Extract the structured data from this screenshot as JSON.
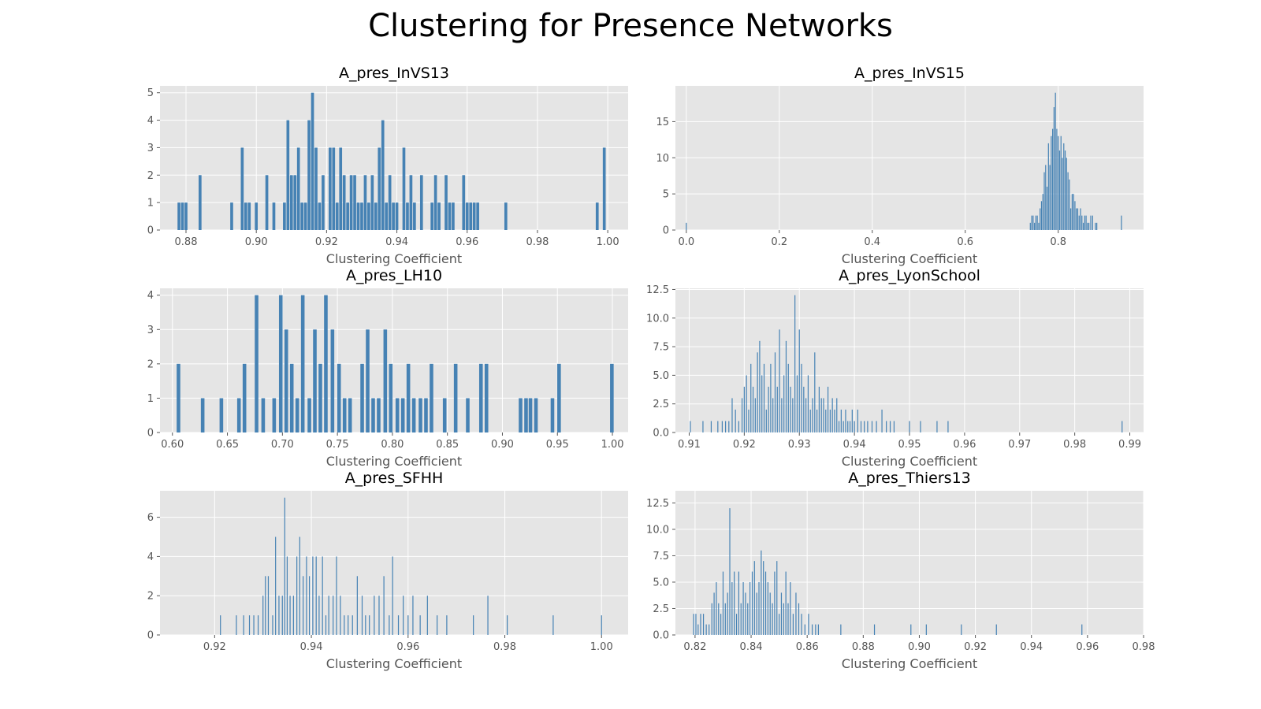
{
  "figure": {
    "suptitle": "Clustering for Presence Networks"
  },
  "colors": {
    "bar": "#4682b4",
    "panel_bg": "#e5e5e5",
    "grid": "#ffffff",
    "tick": "#555555"
  },
  "chart_data": [
    {
      "type": "bar",
      "title": "A_pres_InVS13",
      "xlabel": "Clustering Coefficient",
      "ylabel": "",
      "xlim": [
        0.8726,
        1.0058
      ],
      "ylim": [
        0,
        5.25
      ],
      "xticks": [
        0.88,
        0.9,
        0.92,
        0.94,
        0.96,
        0.98,
        1.0
      ],
      "xtick_labels": [
        "0.88",
        "0.90",
        "0.92",
        "0.94",
        "0.96",
        "0.98",
        "1.00"
      ],
      "yticks": [
        0,
        1,
        2,
        3,
        4,
        5
      ],
      "ytick_labels": [
        "0",
        "1",
        "2",
        "3",
        "4",
        "5"
      ],
      "bin_width": 0.001,
      "x": [
        0.878,
        0.879,
        0.88,
        0.884,
        0.893,
        0.896,
        0.897,
        0.898,
        0.9,
        0.903,
        0.905,
        0.908,
        0.909,
        0.91,
        0.911,
        0.912,
        0.913,
        0.914,
        0.915,
        0.916,
        0.917,
        0.918,
        0.919,
        0.921,
        0.922,
        0.923,
        0.924,
        0.925,
        0.926,
        0.927,
        0.928,
        0.929,
        0.93,
        0.931,
        0.932,
        0.933,
        0.934,
        0.935,
        0.936,
        0.937,
        0.938,
        0.939,
        0.94,
        0.942,
        0.943,
        0.944,
        0.945,
        0.947,
        0.95,
        0.951,
        0.952,
        0.954,
        0.955,
        0.956,
        0.959,
        0.96,
        0.961,
        0.962,
        0.963,
        0.971,
        0.997,
        0.999
      ],
      "values": [
        1,
        1,
        1,
        2,
        1,
        3,
        1,
        1,
        1,
        2,
        1,
        1,
        4,
        2,
        2,
        3,
        1,
        1,
        4,
        5,
        3,
        1,
        2,
        3,
        3,
        1,
        3,
        2,
        1,
        2,
        2,
        1,
        1,
        2,
        1,
        2,
        1,
        3,
        4,
        1,
        2,
        1,
        1,
        3,
        1,
        2,
        1,
        2,
        1,
        2,
        1,
        2,
        1,
        1,
        2,
        1,
        1,
        1,
        1,
        1,
        1,
        3
      ]
    },
    {
      "type": "bar",
      "title": "A_pres_InVS15",
      "xlabel": "Clustering Coefficient",
      "ylabel": "",
      "xlim": [
        -0.0234,
        0.9836
      ],
      "ylim": [
        0,
        19.95
      ],
      "xticks": [
        0.0,
        0.2,
        0.4,
        0.6,
        0.8
      ],
      "xtick_labels": [
        "0.0",
        "0.2",
        "0.4",
        "0.6",
        "0.8"
      ],
      "yticks": [
        0,
        5,
        10,
        15
      ],
      "ytick_labels": [
        "0",
        "5",
        "10",
        "15"
      ],
      "bin_width": 0.0025,
      "x": [
        0.0,
        0.74,
        0.743,
        0.746,
        0.749,
        0.752,
        0.755,
        0.758,
        0.761,
        0.764,
        0.767,
        0.77,
        0.773,
        0.776,
        0.779,
        0.782,
        0.785,
        0.788,
        0.791,
        0.794,
        0.797,
        0.8,
        0.803,
        0.806,
        0.809,
        0.812,
        0.815,
        0.818,
        0.821,
        0.824,
        0.827,
        0.83,
        0.833,
        0.836,
        0.839,
        0.842,
        0.845,
        0.848,
        0.851,
        0.854,
        0.857,
        0.86,
        0.863,
        0.866,
        0.87,
        0.874,
        0.88,
        0.883,
        0.936
      ],
      "values": [
        1,
        1,
        2,
        2,
        1,
        2,
        2,
        1,
        3,
        4,
        5,
        8,
        9,
        6,
        12,
        9,
        13,
        14,
        17,
        19,
        14,
        13,
        11,
        13,
        10,
        12,
        11,
        10,
        8,
        7,
        3,
        5,
        5,
        4,
        3,
        3,
        2,
        3,
        2,
        1,
        2,
        2,
        1,
        1,
        2,
        2,
        1,
        1,
        2
      ]
    },
    {
      "type": "bar",
      "title": "A_pres_LH10",
      "xlabel": "Clustering Coefficient",
      "ylabel": "",
      "xlim": [
        0.5887,
        1.0143
      ],
      "ylim": [
        0,
        4.2
      ],
      "xticks": [
        0.6,
        0.65,
        0.7,
        0.75,
        0.8,
        0.85,
        0.9,
        0.95,
        1.0
      ],
      "xtick_labels": [
        "0.60",
        "0.65",
        "0.70",
        "0.75",
        "0.80",
        "0.85",
        "0.90",
        "0.95",
        "1.00"
      ],
      "yticks": [
        0,
        1,
        2,
        3,
        4
      ],
      "ytick_labels": [
        "0",
        "1",
        "2",
        "3",
        "4"
      ],
      "bin_width": 0.004,
      "x": [
        0.6055,
        0.6275,
        0.6445,
        0.6605,
        0.6655,
        0.6765,
        0.6825,
        0.6925,
        0.6985,
        0.7035,
        0.7085,
        0.7135,
        0.7185,
        0.7245,
        0.7295,
        0.7345,
        0.7395,
        0.7455,
        0.7515,
        0.7565,
        0.7615,
        0.7725,
        0.7775,
        0.7825,
        0.7875,
        0.7935,
        0.7985,
        0.8045,
        0.8095,
        0.8145,
        0.8195,
        0.8255,
        0.8305,
        0.8355,
        0.8475,
        0.8575,
        0.8685,
        0.8805,
        0.8855,
        0.9165,
        0.9215,
        0.9255,
        0.9305,
        0.9455,
        0.9515,
        0.9995
      ],
      "values": [
        2,
        1,
        1,
        1,
        2,
        4,
        1,
        1,
        4,
        3,
        2,
        1,
        4,
        1,
        3,
        2,
        4,
        3,
        2,
        1,
        1,
        2,
        3,
        1,
        1,
        3,
        2,
        1,
        1,
        2,
        1,
        1,
        1,
        2,
        1,
        2,
        1,
        2,
        2,
        1,
        1,
        1,
        1,
        1,
        2,
        2
      ]
    },
    {
      "type": "bar",
      "title": "A_pres_LyonSchool",
      "xlabel": "Clustering Coefficient",
      "ylabel": "",
      "xlim": [
        0.9075,
        0.9925
      ],
      "ylim": [
        0,
        12.6
      ],
      "xticks": [
        0.91,
        0.92,
        0.93,
        0.94,
        0.95,
        0.96,
        0.97,
        0.98,
        0.99
      ],
      "xtick_labels": [
        "0.91",
        "0.92",
        "0.93",
        "0.94",
        "0.95",
        "0.96",
        "0.97",
        "0.98",
        "0.99"
      ],
      "yticks": [
        0.0,
        2.5,
        5.0,
        7.5,
        10.0,
        12.5
      ],
      "ytick_labels": [
        "0.0",
        "2.5",
        "5.0",
        "7.5",
        "10.0",
        "12.5"
      ],
      "bin_width": 0.0002,
      "x": [
        0.9102,
        0.9125,
        0.914,
        0.9152,
        0.916,
        0.9166,
        0.9172,
        0.9178,
        0.9184,
        0.919,
        0.9196,
        0.92,
        0.9204,
        0.9208,
        0.9212,
        0.9216,
        0.922,
        0.9224,
        0.9228,
        0.9232,
        0.9236,
        0.924,
        0.9244,
        0.9248,
        0.9252,
        0.9256,
        0.926,
        0.9264,
        0.9268,
        0.9272,
        0.9276,
        0.928,
        0.9284,
        0.9288,
        0.9292,
        0.9296,
        0.93,
        0.9304,
        0.9308,
        0.9312,
        0.9316,
        0.932,
        0.9324,
        0.9328,
        0.9332,
        0.9336,
        0.934,
        0.9344,
        0.9348,
        0.9352,
        0.9356,
        0.936,
        0.9364,
        0.9368,
        0.9372,
        0.9376,
        0.938,
        0.9384,
        0.9388,
        0.9392,
        0.9396,
        0.94,
        0.9406,
        0.9412,
        0.9418,
        0.9424,
        0.9432,
        0.944,
        0.945,
        0.9458,
        0.9465,
        0.9472,
        0.95,
        0.952,
        0.955,
        0.957,
        0.9886
      ],
      "values": [
        1,
        1,
        1,
        1,
        1,
        1,
        1,
        3,
        2,
        1,
        3,
        4,
        5,
        2,
        6,
        4,
        3,
        7,
        8,
        5,
        6,
        2,
        4,
        6,
        3,
        7,
        4,
        9,
        3,
        5,
        8,
        6,
        4,
        3,
        12,
        5,
        9,
        6,
        4,
        3,
        5,
        2,
        3,
        7,
        2,
        4,
        3,
        3,
        2,
        4,
        2,
        3,
        2,
        3,
        1,
        2,
        1,
        2,
        1,
        1,
        2,
        1,
        2,
        1,
        1,
        1,
        1,
        1,
        2,
        1,
        1,
        1,
        1,
        1,
        1,
        1,
        1
      ]
    },
    {
      "type": "bar",
      "title": "A_pres_SFHH",
      "xlabel": "Clustering Coefficient",
      "ylabel": "",
      "xlim": [
        0.9087,
        1.0055
      ],
      "ylim": [
        0,
        7.35
      ],
      "xticks": [
        0.92,
        0.94,
        0.96,
        0.98,
        1.0
      ],
      "xtick_labels": [
        "0.92",
        "0.94",
        "0.96",
        "0.98",
        "1.00"
      ],
      "yticks": [
        0,
        2,
        4,
        6
      ],
      "ytick_labels": [
        "0",
        "2",
        "4",
        "6"
      ],
      "bin_width": 0.0002,
      "x": [
        0.9212,
        0.9245,
        0.926,
        0.9272,
        0.9281,
        0.929,
        0.93,
        0.9305,
        0.9311,
        0.932,
        0.9326,
        0.9333,
        0.934,
        0.9345,
        0.935,
        0.9356,
        0.9363,
        0.937,
        0.9376,
        0.9383,
        0.939,
        0.9396,
        0.9403,
        0.941,
        0.9416,
        0.9423,
        0.943,
        0.9436,
        0.9445,
        0.9452,
        0.946,
        0.9468,
        0.9476,
        0.9485,
        0.9495,
        0.9505,
        0.9512,
        0.952,
        0.953,
        0.954,
        0.955,
        0.9561,
        0.9568,
        0.958,
        0.959,
        0.96,
        0.961,
        0.9625,
        0.964,
        0.966,
        0.968,
        0.9735,
        0.9765,
        0.9805,
        0.99,
        1.0
      ],
      "values": [
        1,
        1,
        1,
        1,
        1,
        1,
        2,
        3,
        3,
        1,
        5,
        2,
        2,
        7,
        4,
        2,
        2,
        4,
        5,
        3,
        4,
        3,
        4,
        4,
        2,
        4,
        1,
        2,
        2,
        4,
        2,
        1,
        1,
        1,
        3,
        2,
        1,
        1,
        2,
        2,
        3,
        1,
        4,
        1,
        2,
        1,
        2,
        1,
        2,
        1,
        1,
        1,
        2,
        1,
        1,
        1
      ]
    },
    {
      "type": "bar",
      "title": "A_pres_Thiers13",
      "xlabel": "Clustering Coefficient",
      "ylabel": "",
      "xlim": [
        0.813,
        0.98
      ],
      "ylim": [
        0,
        13.65
      ],
      "xticks": [
        0.82,
        0.84,
        0.86,
        0.88,
        0.9,
        0.92,
        0.94,
        0.96,
        0.98
      ],
      "xtick_labels": [
        "0.82",
        "0.84",
        "0.86",
        "0.88",
        "0.90",
        "0.92",
        "0.94",
        "0.96",
        "0.98"
      ],
      "yticks": [
        0.0,
        2.5,
        5.0,
        7.5,
        10.0,
        12.5
      ],
      "ytick_labels": [
        "0.0",
        "2.5",
        "5.0",
        "7.5",
        "10.0",
        "12.5"
      ],
      "bin_width": 0.0003,
      "x": [
        0.8195,
        0.8203,
        0.8211,
        0.822,
        0.823,
        0.824,
        0.825,
        0.826,
        0.8268,
        0.8276,
        0.8284,
        0.8292,
        0.83,
        0.8308,
        0.8316,
        0.8324,
        0.8332,
        0.834,
        0.8348,
        0.8356,
        0.8364,
        0.8372,
        0.838,
        0.8388,
        0.8396,
        0.8404,
        0.8412,
        0.842,
        0.8428,
        0.8436,
        0.8444,
        0.8452,
        0.846,
        0.8468,
        0.8476,
        0.8484,
        0.8492,
        0.85,
        0.8508,
        0.8516,
        0.8524,
        0.8532,
        0.854,
        0.855,
        0.856,
        0.857,
        0.858,
        0.8592,
        0.8605,
        0.8618,
        0.863,
        0.864,
        0.872,
        0.884,
        0.897,
        0.9025,
        0.915,
        0.9275,
        0.958
      ],
      "values": [
        2,
        2,
        1,
        2,
        2,
        1,
        1,
        3,
        4,
        5,
        3,
        2,
        6,
        3,
        4,
        12,
        5,
        6,
        2,
        6,
        3,
        5,
        4,
        3,
        5,
        6,
        7,
        4,
        5,
        8,
        7,
        6,
        5,
        4,
        3,
        6,
        7,
        2,
        4,
        3,
        6,
        3,
        5,
        2,
        4,
        3,
        2,
        1,
        2,
        1,
        1,
        1,
        1,
        1,
        1,
        1,
        1,
        1,
        1
      ]
    }
  ]
}
